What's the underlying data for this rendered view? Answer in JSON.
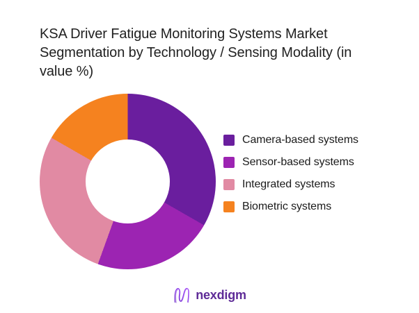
{
  "title": {
    "text": "KSA Driver Fatigue Monitoring Systems Market Segmentation by Technology / Sensing Modality (in value %)",
    "lines": [
      "KSA Driver Fatigue Monitoring Systems Market",
      "Segmentation by Technology / Sensing Modality (in",
      "value %)"
    ]
  },
  "chart_data": {
    "type": "pie",
    "subtype": "donut",
    "title": "KSA Driver Fatigue Monitoring Systems Market Segmentation by Technology / Sensing Modality (in value %)",
    "categories": [
      "Camera-based systems",
      "Sensor-based systems",
      "Integrated systems",
      "Biometric systems"
    ],
    "values": [
      33.3,
      22.2,
      27.8,
      16.7
    ],
    "values_note": "percent, estimated from arc angles of ~120, 80, 100 and 60 degrees; no numeric data labels are shown in the image",
    "colors": [
      "#6A1E9E",
      "#9C24B2",
      "#E18AA3",
      "#F5821F"
    ],
    "start_angle_deg": 0,
    "direction": "clockwise",
    "hole_ratio": 0.48,
    "data_labels": false,
    "legend_position": "right"
  },
  "legend": {
    "items": [
      {
        "label": "Camera-based systems",
        "color": "#6A1E9E"
      },
      {
        "label": "Sensor-based systems",
        "color": "#9C24B2"
      },
      {
        "label": "Integrated systems",
        "color": "#E18AA3"
      },
      {
        "label": "Biometric systems",
        "color": "#F5821F"
      }
    ]
  },
  "footer": {
    "brand_text": "nexdigm",
    "brand_color": "#5E2B97"
  }
}
